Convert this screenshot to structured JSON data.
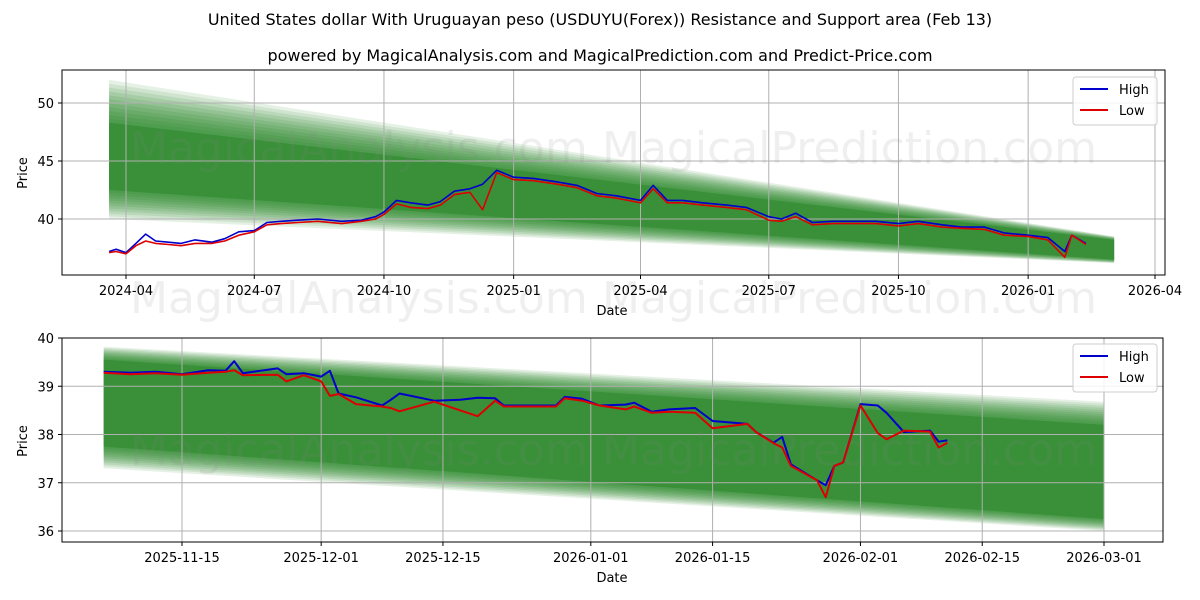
{
  "title": "United States dollar With Uruguayan peso (USDUYU(Forex)) Resistance and Support area (Feb 13)",
  "subtitle": "powered by MagicalAnalysis.com and MagicalPrediction.com and Predict-Price.com",
  "watermarks": [
    "MagicalAnalysis.com",
    "MagicalPrediction.com"
  ],
  "colors": {
    "high": "#0000cc",
    "low": "#dd0000",
    "band": "#2e8b2e",
    "grid": "#b0b0b0"
  },
  "legend": {
    "high": "High",
    "low": "Low"
  },
  "chart_data": [
    {
      "type": "line",
      "title": "Long-term view",
      "xlabel": "Date",
      "ylabel": "Price",
      "x_ticks": [
        "2024-04",
        "2024-07",
        "2024-10",
        "2025-01",
        "2025-04",
        "2025-07",
        "2025-10",
        "2026-01",
        "2026-04"
      ],
      "y_ticks": [
        40,
        45,
        50
      ],
      "ylim": [
        35.2,
        52.8
      ],
      "grid": true,
      "legend_position": "upper right",
      "band": {
        "x_start": "2024-03-20",
        "x_end": "2026-03-03",
        "outer_upper_start": 52.0,
        "outer_upper_end": 38.5,
        "outer_lower_start": 40.0,
        "outer_lower_end": 36.2,
        "core_upper_start": 48.3,
        "core_upper_end": 38.2,
        "core_lower_start": 42.5,
        "core_lower_end": 36.5
      },
      "series": [
        {
          "name": "High",
          "x": [
            "2024-03-20",
            "2024-03-25",
            "2024-04-01",
            "2024-04-08",
            "2024-04-15",
            "2024-04-22",
            "2024-05-01",
            "2024-05-10",
            "2024-05-20",
            "2024-06-01",
            "2024-06-10",
            "2024-06-20",
            "2024-07-01",
            "2024-07-10",
            "2024-07-20",
            "2024-08-01",
            "2024-08-15",
            "2024-09-01",
            "2024-09-15",
            "2024-09-25",
            "2024-10-01",
            "2024-10-10",
            "2024-10-20",
            "2024-11-01",
            "2024-11-10",
            "2024-11-20",
            "2024-12-01",
            "2024-12-10",
            "2024-12-20",
            "2025-01-01",
            "2025-01-15",
            "2025-02-01",
            "2025-02-15",
            "2025-03-01",
            "2025-03-15",
            "2025-04-01",
            "2025-04-10",
            "2025-04-20",
            "2025-05-01",
            "2025-05-15",
            "2025-06-01",
            "2025-06-15",
            "2025-07-01",
            "2025-07-10",
            "2025-07-20",
            "2025-08-01",
            "2025-08-15",
            "2025-09-01",
            "2025-09-15",
            "2025-10-01",
            "2025-10-15",
            "2025-11-01",
            "2025-11-15",
            "2025-12-01",
            "2025-12-15",
            "2026-01-01",
            "2026-01-15",
            "2026-01-27",
            "2026-02-01",
            "2026-02-11"
          ],
          "values": [
            37.2,
            37.4,
            37.1,
            37.9,
            38.7,
            38.1,
            38.0,
            37.9,
            38.2,
            38.0,
            38.3,
            38.9,
            39.0,
            39.7,
            39.8,
            39.9,
            40.0,
            39.8,
            39.9,
            40.2,
            40.6,
            41.6,
            41.4,
            41.2,
            41.5,
            42.4,
            42.6,
            43.0,
            44.2,
            43.6,
            43.5,
            43.2,
            42.9,
            42.2,
            42.0,
            41.6,
            42.9,
            41.6,
            41.6,
            41.4,
            41.2,
            41.0,
            40.2,
            40.0,
            40.5,
            39.7,
            39.8,
            39.8,
            39.8,
            39.6,
            39.8,
            39.5,
            39.3,
            39.3,
            38.8,
            38.6,
            38.4,
            37.2,
            38.6,
            37.9
          ]
        },
        {
          "name": "Low",
          "x": [
            "2024-03-20",
            "2024-03-25",
            "2024-04-01",
            "2024-04-08",
            "2024-04-15",
            "2024-04-22",
            "2024-05-01",
            "2024-05-10",
            "2024-05-20",
            "2024-06-01",
            "2024-06-10",
            "2024-06-20",
            "2024-07-01",
            "2024-07-10",
            "2024-07-20",
            "2024-08-01",
            "2024-08-15",
            "2024-09-01",
            "2024-09-15",
            "2024-09-25",
            "2024-10-01",
            "2024-10-10",
            "2024-10-20",
            "2024-11-01",
            "2024-11-10",
            "2024-11-20",
            "2024-12-01",
            "2024-12-10",
            "2024-12-20",
            "2025-01-01",
            "2025-01-15",
            "2025-02-01",
            "2025-02-15",
            "2025-03-01",
            "2025-03-15",
            "2025-04-01",
            "2025-04-10",
            "2025-04-20",
            "2025-05-01",
            "2025-05-15",
            "2025-06-01",
            "2025-06-15",
            "2025-07-01",
            "2025-07-10",
            "2025-07-20",
            "2025-08-01",
            "2025-08-15",
            "2025-09-01",
            "2025-09-15",
            "2025-10-01",
            "2025-10-15",
            "2025-11-01",
            "2025-11-15",
            "2025-12-01",
            "2025-12-15",
            "2026-01-01",
            "2026-01-15",
            "2026-01-27",
            "2026-02-01",
            "2026-02-11"
          ],
          "values": [
            37.1,
            37.2,
            37.0,
            37.7,
            38.1,
            37.9,
            37.8,
            37.7,
            37.9,
            37.9,
            38.1,
            38.6,
            38.9,
            39.5,
            39.6,
            39.7,
            39.8,
            39.6,
            39.8,
            40.0,
            40.4,
            41.3,
            41.0,
            40.9,
            41.2,
            42.1,
            42.3,
            40.8,
            44.0,
            43.4,
            43.3,
            43.0,
            42.7,
            42.0,
            41.8,
            41.4,
            42.6,
            41.4,
            41.4,
            41.2,
            41.0,
            40.8,
            39.9,
            39.8,
            40.2,
            39.5,
            39.6,
            39.6,
            39.6,
            39.4,
            39.6,
            39.3,
            39.2,
            39.1,
            38.6,
            38.5,
            38.2,
            36.7,
            38.6,
            37.8
          ]
        }
      ]
    },
    {
      "type": "line",
      "title": "Recent view",
      "xlabel": "Date",
      "ylabel": "Price",
      "x_ticks": [
        "2025-11-15",
        "2025-12-01",
        "2025-12-15",
        "2026-01-01",
        "2026-01-15",
        "2026-02-01",
        "2026-02-15",
        "2026-03-01"
      ],
      "y_ticks": [
        36,
        37,
        38,
        39,
        40
      ],
      "ylim": [
        35.8,
        40.0
      ],
      "grid": true,
      "legend_position": "upper right",
      "band": {
        "x_start": "2025-11-06",
        "x_end": "2026-03-01",
        "outer_upper_start": 39.82,
        "outer_upper_end": 38.68,
        "outer_lower_start": 37.3,
        "outer_lower_end": 36.0,
        "core_upper_start": 39.55,
        "core_upper_end": 38.2,
        "core_lower_start": 37.75,
        "core_lower_end": 36.25
      },
      "series": [
        {
          "name": "High",
          "x": [
            "2025-11-06",
            "2025-11-09",
            "2025-11-12",
            "2025-11-15",
            "2025-11-18",
            "2025-11-20",
            "2025-11-21",
            "2025-11-22",
            "2025-11-26",
            "2025-11-27",
            "2025-11-29",
            "2025-12-01",
            "2025-12-02",
            "2025-12-03",
            "2025-12-05",
            "2025-12-08",
            "2025-12-09",
            "2025-12-10",
            "2025-12-14",
            "2025-12-17",
            "2025-12-19",
            "2025-12-21",
            "2025-12-22",
            "2025-12-28",
            "2025-12-29",
            "2025-12-31",
            "2026-01-02",
            "2026-01-05",
            "2026-01-06",
            "2026-01-08",
            "2026-01-10",
            "2026-01-13",
            "2026-01-15",
            "2026-01-19",
            "2026-01-20",
            "2026-01-22",
            "2026-01-23",
            "2026-01-24",
            "2026-01-27",
            "2026-01-28",
            "2026-01-29",
            "2026-01-30",
            "2026-02-01",
            "2026-02-03",
            "2026-02-04",
            "2026-02-06",
            "2026-02-09",
            "2026-02-10",
            "2026-02-11"
          ],
          "values": [
            39.3,
            39.28,
            39.3,
            39.25,
            39.33,
            39.32,
            39.52,
            39.27,
            39.37,
            39.25,
            39.27,
            39.2,
            39.32,
            38.85,
            38.77,
            38.6,
            38.72,
            38.85,
            38.7,
            38.72,
            38.76,
            38.75,
            38.6,
            38.6,
            38.78,
            38.74,
            38.6,
            38.62,
            38.66,
            38.47,
            38.52,
            38.55,
            38.28,
            38.22,
            38.05,
            37.83,
            37.95,
            37.38,
            37.05,
            36.95,
            37.35,
            37.42,
            38.63,
            38.6,
            38.45,
            38.05,
            38.08,
            37.85,
            37.88
          ]
        },
        {
          "name": "Low",
          "x": [
            "2025-11-06",
            "2025-11-09",
            "2025-11-12",
            "2025-11-15",
            "2025-11-18",
            "2025-11-20",
            "2025-11-21",
            "2025-11-22",
            "2025-11-26",
            "2025-11-27",
            "2025-11-29",
            "2025-12-01",
            "2025-12-02",
            "2025-12-03",
            "2025-12-05",
            "2025-12-08",
            "2025-12-09",
            "2025-12-10",
            "2025-12-14",
            "2025-12-17",
            "2025-12-19",
            "2025-12-21",
            "2025-12-22",
            "2025-12-28",
            "2025-12-29",
            "2025-12-31",
            "2026-01-02",
            "2026-01-05",
            "2026-01-06",
            "2026-01-08",
            "2026-01-10",
            "2026-01-13",
            "2026-01-15",
            "2026-01-19",
            "2026-01-20",
            "2026-01-22",
            "2026-01-23",
            "2026-01-24",
            "2026-01-27",
            "2026-01-28",
            "2026-01-29",
            "2026-01-30",
            "2026-02-01",
            "2026-02-03",
            "2026-02-04",
            "2026-02-06",
            "2026-02-09",
            "2026-02-10",
            "2026-02-11"
          ],
          "values": [
            39.28,
            39.25,
            39.27,
            39.24,
            39.28,
            39.3,
            39.33,
            39.23,
            39.24,
            39.1,
            39.23,
            39.1,
            38.8,
            38.84,
            38.63,
            38.58,
            38.55,
            38.48,
            38.68,
            38.5,
            38.38,
            38.7,
            38.58,
            38.58,
            38.75,
            38.7,
            38.6,
            38.52,
            38.58,
            38.45,
            38.47,
            38.45,
            38.13,
            38.22,
            38.05,
            37.82,
            37.73,
            37.35,
            37.05,
            36.7,
            37.35,
            37.42,
            38.6,
            38.03,
            37.9,
            38.08,
            38.06,
            37.73,
            37.83
          ]
        }
      ]
    }
  ]
}
